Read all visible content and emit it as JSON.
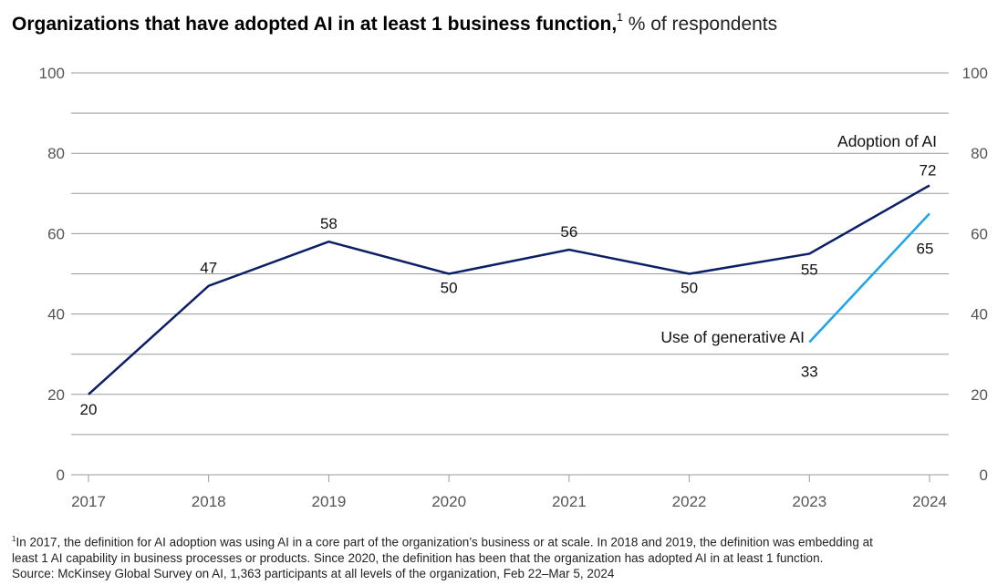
{
  "header": {
    "title": "Organizations that have adopted AI in at least 1 business function,",
    "title_sup": "1",
    "subtitle": "% of respondents"
  },
  "chart_data": {
    "type": "line",
    "x": [
      "2017",
      "2018",
      "2019",
      "2020",
      "2021",
      "2022",
      "2023",
      "2024"
    ],
    "ylim": [
      0,
      100
    ],
    "yticks": [
      0,
      20,
      40,
      60,
      80,
      100
    ],
    "grid": true,
    "series": [
      {
        "name": "Adoption of AI",
        "color": "#0b1f66",
        "x": [
          "2017",
          "2018",
          "2019",
          "2020",
          "2021",
          "2022",
          "2023",
          "2024"
        ],
        "values": [
          20,
          47,
          58,
          50,
          56,
          50,
          55,
          72
        ]
      },
      {
        "name": "Use of generative AI",
        "color": "#1ea5e6",
        "x": [
          "2023",
          "2024"
        ],
        "values": [
          33,
          65
        ]
      }
    ]
  },
  "footnotes": {
    "line1_sup": "1",
    "line1": "In 2017, the definition for AI adoption was using AI in a core part of the organization’s business or at scale. In 2018 and 2019, the definition was embedding at",
    "line2": "least 1 AI capability in business processes or products. Since 2020, the definition has been that the organization has adopted AI in at least 1 function.",
    "source": "Source: McKinsey Global Survey on AI, 1,363 participants at all levels of the organization, Feb 22–Mar 5, 2024"
  }
}
